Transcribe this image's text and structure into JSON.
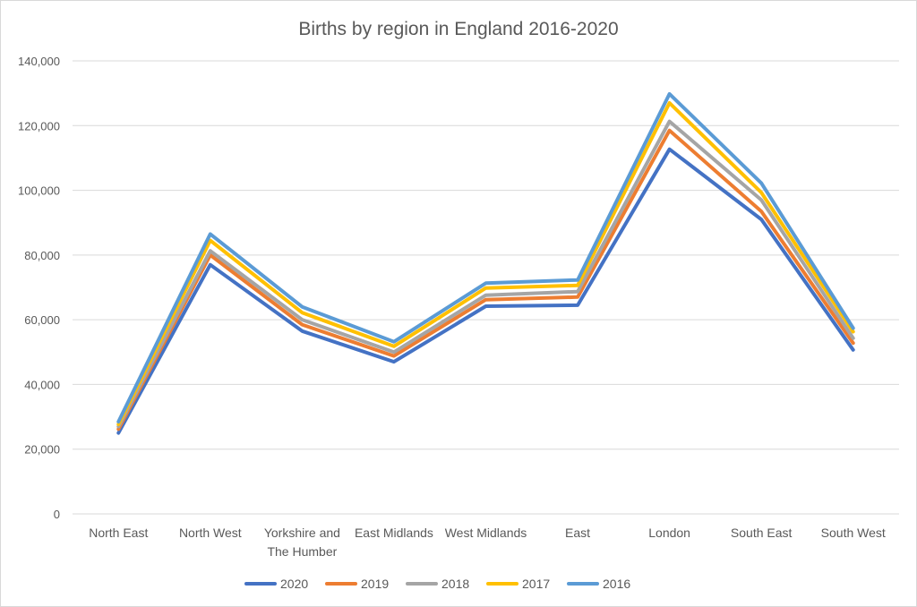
{
  "chart_data": {
    "type": "line",
    "title": "Births by region in England 2016-2020",
    "xlabel": "",
    "ylabel": "",
    "categories": [
      "North East",
      "North West",
      "Yorkshire and The Humber",
      "East Midlands",
      "West Midlands",
      "East",
      "London",
      "South East",
      "South West"
    ],
    "category_label_lines": [
      [
        "North East"
      ],
      [
        "North West"
      ],
      [
        "Yorkshire and",
        "The Humber"
      ],
      [
        "East Midlands"
      ],
      [
        "West Midlands"
      ],
      [
        "East"
      ],
      [
        "London"
      ],
      [
        "South East"
      ],
      [
        "South West"
      ]
    ],
    "ylim": [
      0,
      140000
    ],
    "yticks": [
      0,
      20000,
      40000,
      60000,
      80000,
      100000,
      120000,
      140000
    ],
    "ytick_labels": [
      "0",
      "20,000",
      "40,000",
      "60,000",
      "80,000",
      "100,000",
      "120,000",
      "140,000"
    ],
    "grid": true,
    "legend_position": "bottom",
    "series": [
      {
        "name": "2020",
        "color": "#4472C4",
        "values": [
          25000,
          77000,
          56500,
          47000,
          64200,
          64500,
          112700,
          91000,
          50700
        ]
      },
      {
        "name": "2019",
        "color": "#ED7D31",
        "values": [
          26200,
          80000,
          58500,
          48800,
          66200,
          67000,
          118500,
          93500,
          52800
        ]
      },
      {
        "name": "2018",
        "color": "#A5A5A5",
        "values": [
          27000,
          81300,
          60000,
          50000,
          67600,
          68700,
          121300,
          97000,
          54300
        ]
      },
      {
        "name": "2017",
        "color": "#FFC000",
        "values": [
          27700,
          84500,
          62200,
          51800,
          69800,
          70600,
          127000,
          99300,
          56300
        ]
      },
      {
        "name": "2016",
        "color": "#5B9BD5",
        "values": [
          28500,
          86500,
          64000,
          53200,
          71300,
          72300,
          129800,
          102200,
          57400
        ]
      }
    ]
  }
}
